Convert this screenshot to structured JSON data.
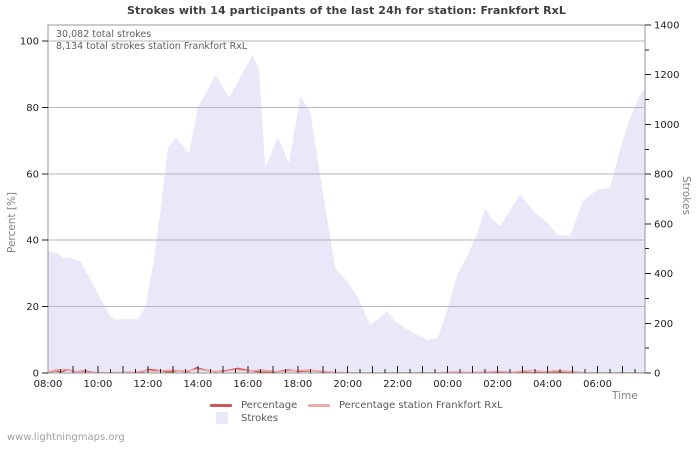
{
  "page": {
    "watermark": "www.lightningmaps.org"
  },
  "chart_data": {
    "type": "area",
    "title": "Strokes with 14 participants of the last 24h for station: Frankfort RxL",
    "annotations": [
      "30,082 total strokes",
      "8,134 total strokes station Frankfort RxL"
    ],
    "xlabel": "Time",
    "ylabel_left": "Percent  [%]",
    "ylabel_right": "Strokes",
    "x_axis": {
      "start_label": "08:00",
      "span_hours": 23.9,
      "minor_tick_hours": 0.5,
      "tick_hours": [
        0,
        2,
        4,
        6,
        8,
        10,
        12,
        14,
        16,
        18,
        20,
        22
      ],
      "tick_labels": [
        "08:00",
        "10:00",
        "12:00",
        "14:00",
        "16:00",
        "18:00",
        "20:00",
        "22:00",
        "00:00",
        "02:00",
        "04:00",
        "06:00"
      ]
    },
    "y_left": {
      "min": 0,
      "max": 100,
      "ticks": [
        0,
        20,
        40,
        60,
        80,
        100
      ],
      "grid": true
    },
    "y_right": {
      "min": 0,
      "max": 1400,
      "ticks": [
        0,
        200,
        400,
        600,
        800,
        1000,
        1200,
        1400
      ],
      "minor_step": 100
    },
    "colors": {
      "area": "#e8e8f9",
      "percentage": "#cc5757",
      "percentage_station": "#f3a8a8",
      "grid": "#b6b6bd",
      "border": "#97979c",
      "tick": "#222222"
    },
    "legend": {
      "position": "bottom-center",
      "entries": [
        "Percentage",
        "Percentage station Frankfort RxL",
        "Strokes"
      ]
    },
    "series": [
      {
        "name": "Percentage",
        "type": "line",
        "axis": "left",
        "color": "#cc5757",
        "points": [
          [
            0.0,
            0.2
          ],
          [
            0.3,
            0.7
          ],
          [
            0.5,
            0.3
          ],
          [
            0.8,
            1.0
          ],
          [
            1.1,
            0.4
          ],
          [
            1.5,
            0.6
          ],
          [
            1.9,
            0.1
          ],
          [
            2.5,
            0.1
          ],
          [
            3.2,
            0.15
          ],
          [
            3.8,
            0.2
          ],
          [
            4.0,
            1.1
          ],
          [
            4.4,
            0.8
          ],
          [
            4.8,
            0.3
          ],
          [
            5.2,
            0.7
          ],
          [
            5.6,
            0.4
          ],
          [
            5.95,
            1.6
          ],
          [
            6.3,
            0.9
          ],
          [
            6.7,
            0.4
          ],
          [
            7.2,
            0.8
          ],
          [
            7.6,
            1.4
          ],
          [
            8.0,
            0.8
          ],
          [
            8.5,
            0.3
          ],
          [
            9.0,
            0.2
          ],
          [
            9.6,
            0.9
          ],
          [
            10.1,
            0.5
          ],
          [
            10.6,
            0.7
          ],
          [
            11.1,
            0.3
          ],
          [
            11.6,
            0.1
          ],
          [
            12.2,
            0.05
          ],
          [
            13.0,
            0.1
          ],
          [
            14.0,
            0.05
          ],
          [
            15.0,
            0.05
          ],
          [
            16.0,
            0.1
          ],
          [
            17.0,
            0.1
          ],
          [
            18.0,
            0.1
          ],
          [
            19.0,
            0.3
          ],
          [
            19.4,
            0.1
          ],
          [
            20.4,
            0.4
          ],
          [
            20.8,
            0.1
          ],
          [
            21.6,
            0.1
          ],
          [
            22.5,
            0.05
          ],
          [
            23.9,
            0.05
          ]
        ]
      },
      {
        "name": "Percentage station Frankfort RxL",
        "type": "line",
        "axis": "left",
        "color": "#f3a8a8",
        "points": [
          [
            0.0,
            0.3
          ],
          [
            0.3,
            0.9
          ],
          [
            0.7,
            1.1
          ],
          [
            1.0,
            0.5
          ],
          [
            1.4,
            0.3
          ],
          [
            1.9,
            0.15
          ],
          [
            2.6,
            0.1
          ],
          [
            3.3,
            0.1
          ],
          [
            3.9,
            0.7
          ],
          [
            4.3,
            0.5
          ],
          [
            4.9,
            0.9
          ],
          [
            5.5,
            0.6
          ],
          [
            6.0,
            1.1
          ],
          [
            6.5,
            0.6
          ],
          [
            7.0,
            0.4
          ],
          [
            7.5,
            1.0
          ],
          [
            8.0,
            0.6
          ],
          [
            8.6,
            0.9
          ],
          [
            9.2,
            0.4
          ],
          [
            9.8,
            0.7
          ],
          [
            10.4,
            0.9
          ],
          [
            11.0,
            0.5
          ],
          [
            11.6,
            0.2
          ],
          [
            12.3,
            0.1
          ],
          [
            13.5,
            0.1
          ],
          [
            14.5,
            0.05
          ],
          [
            15.5,
            0.05
          ],
          [
            16.3,
            0.4
          ],
          [
            16.8,
            0.15
          ],
          [
            17.5,
            0.3
          ],
          [
            18.1,
            0.5
          ],
          [
            18.6,
            0.25
          ],
          [
            19.3,
            0.8
          ],
          [
            19.9,
            0.4
          ],
          [
            20.3,
            0.7
          ],
          [
            20.9,
            0.5
          ],
          [
            21.4,
            0.15
          ],
          [
            22.0,
            0.1
          ],
          [
            23.0,
            0.05
          ],
          [
            23.9,
            0.05
          ]
        ]
      },
      {
        "name": "Strokes",
        "type": "area",
        "axis": "right",
        "color": "#e8e8f9",
        "points": [
          [
            0.0,
            490
          ],
          [
            0.4,
            480
          ],
          [
            0.6,
            462
          ],
          [
            0.9,
            465
          ],
          [
            1.3,
            448
          ],
          [
            1.7,
            375
          ],
          [
            2.1,
            300
          ],
          [
            2.5,
            228
          ],
          [
            2.7,
            216
          ],
          [
            3.6,
            216
          ],
          [
            3.9,
            265
          ],
          [
            4.2,
            430
          ],
          [
            4.5,
            650
          ],
          [
            4.8,
            905
          ],
          [
            5.1,
            945
          ],
          [
            5.4,
            915
          ],
          [
            5.65,
            885
          ],
          [
            6.0,
            1070
          ],
          [
            6.4,
            1140
          ],
          [
            6.7,
            1200
          ],
          [
            6.95,
            1160
          ],
          [
            7.25,
            1108
          ],
          [
            7.7,
            1190
          ],
          [
            8.2,
            1280
          ],
          [
            8.45,
            1215
          ],
          [
            8.7,
            825
          ],
          [
            9.2,
            950
          ],
          [
            9.65,
            845
          ],
          [
            10.1,
            1112
          ],
          [
            10.5,
            1050
          ],
          [
            10.9,
            790
          ],
          [
            11.5,
            420
          ],
          [
            12.0,
            365
          ],
          [
            12.4,
            305
          ],
          [
            12.9,
            194
          ],
          [
            13.3,
            222
          ],
          [
            13.55,
            250
          ],
          [
            13.9,
            208
          ],
          [
            14.3,
            180
          ],
          [
            14.8,
            152
          ],
          [
            15.2,
            133
          ],
          [
            15.6,
            142
          ],
          [
            16.0,
            258
          ],
          [
            16.4,
            400
          ],
          [
            16.8,
            472
          ],
          [
            17.2,
            565
          ],
          [
            17.5,
            662
          ],
          [
            17.75,
            622
          ],
          [
            18.1,
            590
          ],
          [
            18.9,
            718
          ],
          [
            19.5,
            645
          ],
          [
            20.0,
            605
          ],
          [
            20.4,
            555
          ],
          [
            20.9,
            552
          ],
          [
            21.4,
            690
          ],
          [
            22.0,
            738
          ],
          [
            22.5,
            745
          ],
          [
            22.9,
            898
          ],
          [
            23.3,
            1025
          ],
          [
            23.65,
            1110
          ],
          [
            23.9,
            1145
          ]
        ]
      }
    ]
  }
}
